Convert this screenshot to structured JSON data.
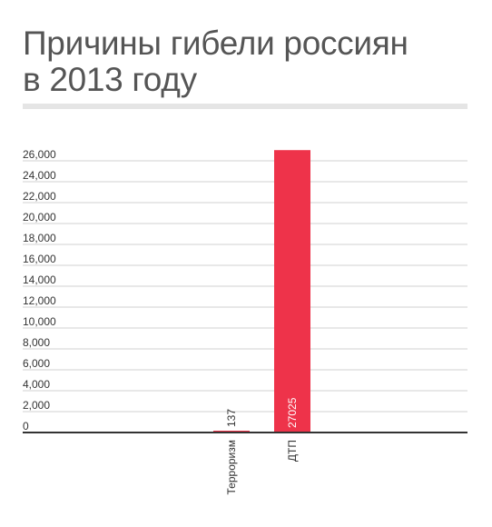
{
  "title_line1": "Причины гибели россиян",
  "title_line2": "в 2013 году",
  "chart_data": {
    "type": "bar",
    "categories": [
      "Терроризм",
      "ДТП"
    ],
    "values": [
      137,
      27025
    ],
    "data_labels": [
      "137",
      "27025"
    ],
    "ylim": [
      0,
      27000
    ],
    "yticks": [
      0,
      2000,
      4000,
      6000,
      8000,
      10000,
      12000,
      14000,
      16000,
      18000,
      20000,
      22000,
      24000,
      26000
    ],
    "ytick_labels": [
      "0",
      "2,000",
      "4,000",
      "6,000",
      "8,000",
      "10,000",
      "12,000",
      "14,000",
      "16,000",
      "18,000",
      "20,000",
      "22,000",
      "24,000",
      "26,000"
    ],
    "grid": true,
    "bar_color": "#ee334a",
    "grid_color": "#d0d0d0",
    "axis_color": "#333333"
  }
}
